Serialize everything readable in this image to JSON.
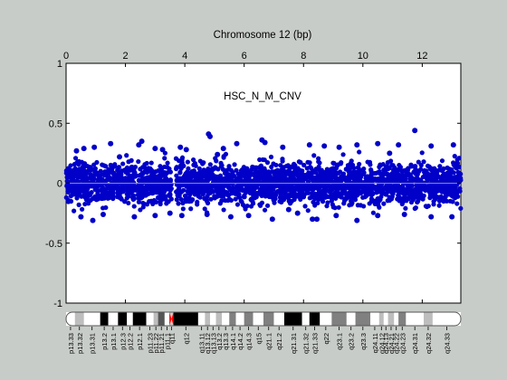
{
  "chart_data": {
    "type": "scatter",
    "title": "HSC_N_M_CNV",
    "xlabel": "Chromosome 12 (bp)",
    "ylabel": "",
    "xlim": [
      0,
      13.3
    ],
    "ylim": [
      -1,
      1
    ],
    "x_ticks": [
      0,
      2,
      4,
      6,
      8,
      10,
      12
    ],
    "y_ticks": [
      1,
      0.5,
      0,
      -0.5,
      -1
    ],
    "y_tick_labels": [
      "1",
      "0.5",
      "0",
      "-0.5",
      "-1"
    ],
    "x_axis_position": "top",
    "grid": false,
    "legend": "none",
    "baseline": 0,
    "point_color": "#0000c8",
    "baseline_color": "#8c8c9c",
    "data_gap": [
      3.55,
      3.7
    ],
    "series": [
      {
        "name": "",
        "points": [
          [
            0.35,
            0.27
          ],
          [
            0.6,
            0.29
          ],
          [
            0.95,
            0.3
          ],
          [
            1.5,
            0.33
          ],
          [
            2.55,
            0.35
          ],
          [
            2.45,
            0.32
          ],
          [
            3.0,
            0.29
          ],
          [
            3.25,
            0.28
          ],
          [
            3.85,
            0.3
          ],
          [
            4.05,
            0.28
          ],
          [
            4.8,
            0.41
          ],
          [
            4.85,
            0.39
          ],
          [
            5.3,
            0.29
          ],
          [
            5.75,
            0.33
          ],
          [
            6.6,
            0.36
          ],
          [
            6.7,
            0.34
          ],
          [
            7.3,
            0.3
          ],
          [
            8.2,
            0.32
          ],
          [
            8.7,
            0.31
          ],
          [
            9.2,
            0.3
          ],
          [
            9.8,
            0.32
          ],
          [
            10.5,
            0.33
          ],
          [
            11.2,
            0.32
          ],
          [
            11.75,
            0.44
          ],
          [
            12.3,
            0.31
          ],
          [
            13.05,
            0.32
          ],
          [
            0.5,
            -0.28
          ],
          [
            0.9,
            -0.31
          ],
          [
            1.25,
            -0.26
          ],
          [
            2.3,
            -0.28
          ],
          [
            3.0,
            -0.27
          ],
          [
            3.5,
            -0.25
          ],
          [
            3.9,
            -0.27
          ],
          [
            4.75,
            -0.26
          ],
          [
            5.55,
            -0.28
          ],
          [
            6.15,
            -0.27
          ],
          [
            6.95,
            -0.3
          ],
          [
            7.8,
            -0.25
          ],
          [
            8.3,
            -0.3
          ],
          [
            8.45,
            -0.3
          ],
          [
            9.1,
            -0.27
          ],
          [
            9.8,
            -0.31
          ],
          [
            10.5,
            -0.27
          ],
          [
            11.4,
            -0.26
          ],
          [
            12.3,
            -0.28
          ],
          [
            13.0,
            -0.28
          ],
          [
            1.8,
            0.22
          ],
          [
            7.5,
            -0.22
          ],
          [
            10.9,
            0.25
          ],
          [
            5.1,
            0.24
          ]
        ]
      }
    ]
  },
  "ideogram": {
    "colors": {
      "white": "#ffffff",
      "gray1": "#bdbdbd",
      "gray2": "#808080",
      "gray3": "#555555",
      "black": "#000000",
      "centromere": "#ff0000"
    },
    "bands": [
      {
        "name": "p13.33",
        "start": 0,
        "end": 0.3,
        "shade": "white"
      },
      {
        "name": "p13.32",
        "start": 0.3,
        "end": 0.6,
        "shade": "gray1"
      },
      {
        "name": "p13.31",
        "start": 0.6,
        "end": 1.15,
        "shade": "white"
      },
      {
        "name": "p13.2",
        "start": 1.15,
        "end": 1.42,
        "shade": "black"
      },
      {
        "name": "p13.1",
        "start": 1.42,
        "end": 1.75,
        "shade": "white"
      },
      {
        "name": "p12.3",
        "start": 1.75,
        "end": 2.05,
        "shade": "black"
      },
      {
        "name": "p12.2",
        "start": 2.05,
        "end": 2.25,
        "shade": "white"
      },
      {
        "name": "p12.1",
        "start": 2.25,
        "end": 2.7,
        "shade": "black"
      },
      {
        "name": "p11.23",
        "start": 2.7,
        "end": 2.95,
        "shade": "white"
      },
      {
        "name": "p11.22",
        "start": 2.95,
        "end": 3.1,
        "shade": "gray1"
      },
      {
        "name": "p11.21",
        "start": 3.1,
        "end": 3.32,
        "shade": "gray3"
      },
      {
        "name": "p11.1",
        "start": 3.32,
        "end": 3.48,
        "shade": "white"
      },
      {
        "name": "q11",
        "start": 3.48,
        "end": 3.62,
        "shade": "centromere"
      },
      {
        "name": "q12",
        "start": 3.62,
        "end": 4.45,
        "shade": "black"
      },
      {
        "name": "q13.11",
        "start": 4.45,
        "end": 4.68,
        "shade": "white"
      },
      {
        "name": "q13.12",
        "start": 4.68,
        "end": 4.85,
        "shade": "gray1"
      },
      {
        "name": "q13.13",
        "start": 4.85,
        "end": 5.05,
        "shade": "white"
      },
      {
        "name": "q13.2",
        "start": 5.05,
        "end": 5.25,
        "shade": "gray1"
      },
      {
        "name": "q13.3",
        "start": 5.25,
        "end": 5.5,
        "shade": "white"
      },
      {
        "name": "q14.1",
        "start": 5.5,
        "end": 5.72,
        "shade": "gray2"
      },
      {
        "name": "q14.2",
        "start": 5.72,
        "end": 6.0,
        "shade": "white"
      },
      {
        "name": "q14.3",
        "start": 6.0,
        "end": 6.3,
        "shade": "gray2"
      },
      {
        "name": "q15",
        "start": 6.3,
        "end": 6.65,
        "shade": "white"
      },
      {
        "name": "q21.1",
        "start": 6.65,
        "end": 7.0,
        "shade": "gray2"
      },
      {
        "name": "q21.2",
        "start": 7.0,
        "end": 7.35,
        "shade": "white"
      },
      {
        "name": "q21.31",
        "start": 7.35,
        "end": 7.95,
        "shade": "black"
      },
      {
        "name": "q21.32",
        "start": 7.95,
        "end": 8.2,
        "shade": "white"
      },
      {
        "name": "q21.33",
        "start": 8.2,
        "end": 8.55,
        "shade": "black"
      },
      {
        "name": "q22",
        "start": 8.55,
        "end": 8.95,
        "shade": "white"
      },
      {
        "name": "q23.1",
        "start": 8.95,
        "end": 9.45,
        "shade": "gray2"
      },
      {
        "name": "q23.2",
        "start": 9.45,
        "end": 9.75,
        "shade": "white"
      },
      {
        "name": "q23.3",
        "start": 9.75,
        "end": 10.25,
        "shade": "gray2"
      },
      {
        "name": "q24.11",
        "start": 10.25,
        "end": 10.55,
        "shade": "white"
      },
      {
        "name": "q24.12",
        "start": 10.55,
        "end": 10.7,
        "shade": "gray1"
      },
      {
        "name": "q24.13",
        "start": 10.7,
        "end": 10.85,
        "shade": "white"
      },
      {
        "name": "q24.21",
        "start": 10.85,
        "end": 11.05,
        "shade": "gray1"
      },
      {
        "name": "q24.22",
        "start": 11.05,
        "end": 11.2,
        "shade": "white"
      },
      {
        "name": "q24.23",
        "start": 11.2,
        "end": 11.45,
        "shade": "gray2"
      },
      {
        "name": "q24.31",
        "start": 11.45,
        "end": 12.05,
        "shade": "white"
      },
      {
        "name": "q24.32",
        "start": 12.05,
        "end": 12.35,
        "shade": "gray1"
      },
      {
        "name": "q24.33",
        "start": 12.35,
        "end": 13.3,
        "shade": "white"
      }
    ]
  }
}
